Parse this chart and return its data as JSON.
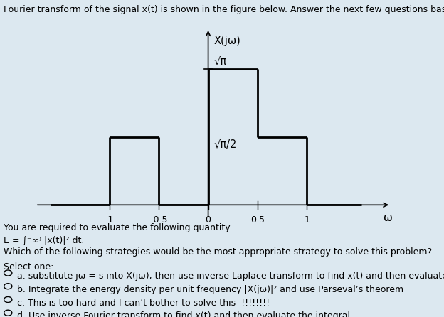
{
  "title_text": "Fourier transform of the signal x(t) is shown in the figure below. Answer the next few questions based on this figure.",
  "plot_bg": "#dce8f0",
  "graph_bg": "#ffffff",
  "ylabel_text": "X(jω)",
  "xlabel_text": "ω",
  "xtick_labels": [
    "-1",
    "-0.5",
    "0",
    "0.5",
    "1"
  ],
  "xtick_vals": [
    -1.0,
    -0.5,
    0.0,
    0.5,
    1.0
  ],
  "ylevel_sqrt_pi": 1.7724538509,
  "ylevel_sqrt_pi_half": 0.8862269255,
  "signal_segments": [
    {
      "x": [
        -1.6,
        -1.0
      ],
      "y": [
        0,
        0
      ]
    },
    {
      "x": [
        -1.0,
        -1.0
      ],
      "y": [
        0,
        0.8862269255
      ]
    },
    {
      "x": [
        -1.0,
        -0.5
      ],
      "y": [
        0.8862269255,
        0.8862269255
      ]
    },
    {
      "x": [
        -0.5,
        -0.5
      ],
      "y": [
        0.8862269255,
        0
      ]
    },
    {
      "x": [
        -0.5,
        0.0
      ],
      "y": [
        0,
        0
      ]
    },
    {
      "x": [
        0.0,
        0.0
      ],
      "y": [
        0,
        1.7724538509
      ]
    },
    {
      "x": [
        0.0,
        0.5
      ],
      "y": [
        1.7724538509,
        1.7724538509
      ]
    },
    {
      "x": [
        0.5,
        0.5
      ],
      "y": [
        1.7724538509,
        0.8862269255
      ]
    },
    {
      "x": [
        0.5,
        1.0
      ],
      "y": [
        0.8862269255,
        0.8862269255
      ]
    },
    {
      "x": [
        1.0,
        1.0
      ],
      "y": [
        0.8862269255,
        0
      ]
    },
    {
      "x": [
        1.0,
        1.55
      ],
      "y": [
        0,
        0
      ]
    }
  ],
  "annotation_sqrt_pi": "√π",
  "annotation_sqrt_pi_half": "√π/2",
  "question_text": "You are required to evaluate the following quantity.",
  "formula_line1": "E = ∫",
  "formula_text": "E = ∫⁻∞⁾ |x(t)|² dt.",
  "question2_text": "Which of the following strategies would be the most appropriate strategy to solve this problem?",
  "select_text": "Select one:",
  "options": [
    "a. substitute jω = s into X(jω), then use inverse Laplace transform to find x(t) and then evaluate the integral",
    "b. Integrate the energy density per unit frequency |X(jω)|² and use Parseval’s theorem",
    "c. This is too hard and I can’t bother to solve this  !!!!!!!!",
    "d. Use inverse Fourier transform to find x(t) and then evaluate the integral"
  ],
  "line_color": "#000000",
  "line_width": 2.0,
  "font_size_title": 9.0,
  "font_size_body": 9.0,
  "font_size_axis": 9.0,
  "font_size_annotation": 10.5,
  "ylim": [
    -0.18,
    2.3
  ],
  "xlim": [
    -1.75,
    1.85
  ]
}
